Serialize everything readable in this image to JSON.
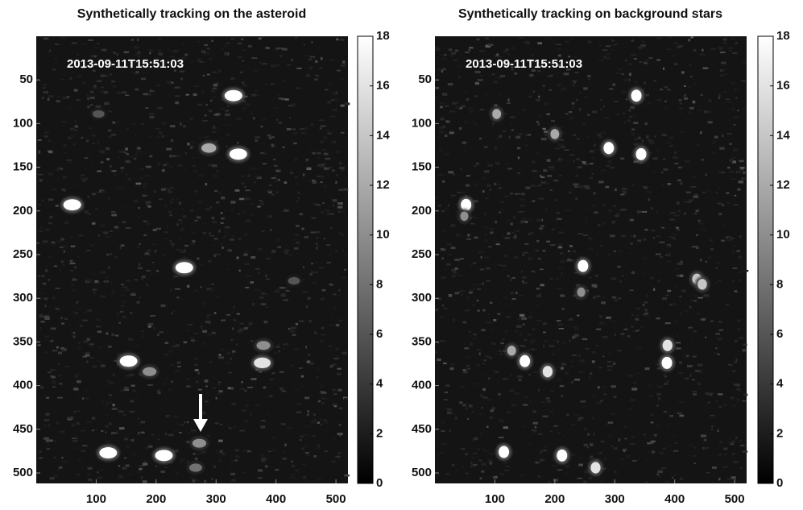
{
  "chart_data": [
    {
      "type": "image",
      "title": "Synthetically tracking on the asteroid",
      "annotation": "2013-09-11T15:51:03",
      "xlim": [
        0,
        520
      ],
      "ylim": [
        0,
        512
      ],
      "y_reversed": true,
      "xticks": [
        100,
        200,
        300,
        400,
        500
      ],
      "yticks": [
        50,
        100,
        150,
        200,
        250,
        300,
        350,
        400,
        450,
        500
      ],
      "colormap": "gray",
      "clim": [
        0,
        18
      ],
      "cticks": [
        0,
        2,
        4,
        6,
        8,
        10,
        12,
        14,
        16,
        18
      ],
      "sources": [
        {
          "x": 329,
          "y": 68,
          "peak": 18
        },
        {
          "x": 288,
          "y": 128,
          "peak": 12
        },
        {
          "x": 337,
          "y": 135,
          "peak": 18
        },
        {
          "x": 60,
          "y": 193,
          "peak": 18
        },
        {
          "x": 247,
          "y": 265,
          "peak": 18
        },
        {
          "x": 154,
          "y": 372,
          "peak": 18
        },
        {
          "x": 189,
          "y": 384,
          "peak": 10
        },
        {
          "x": 379,
          "y": 354,
          "peak": 10
        },
        {
          "x": 377,
          "y": 374,
          "peak": 16
        },
        {
          "x": 120,
          "y": 477,
          "peak": 18
        },
        {
          "x": 213,
          "y": 480,
          "peak": 18
        },
        {
          "x": 266,
          "y": 494,
          "peak": 8
        },
        {
          "x": 104,
          "y": 89,
          "peak": 6
        },
        {
          "x": 430,
          "y": 280,
          "peak": 6
        },
        {
          "x": 272,
          "y": 466,
          "peak": 10
        }
      ]
    },
    {
      "type": "image",
      "title": "Synthetically tracking on background stars",
      "annotation": "2013-09-11T15:51:03",
      "xlim": [
        0,
        520
      ],
      "ylim": [
        0,
        512
      ],
      "y_reversed": true,
      "xticks": [
        100,
        200,
        300,
        400,
        500
      ],
      "yticks": [
        50,
        100,
        150,
        200,
        250,
        300,
        350,
        400,
        450,
        500
      ],
      "colormap": "gray",
      "clim": [
        0,
        18
      ],
      "cticks": [
        0,
        2,
        4,
        6,
        8,
        10,
        12,
        14,
        16,
        18
      ],
      "sources": [
        {
          "x": 336,
          "y": 68,
          "peak": 18
        },
        {
          "x": 290,
          "y": 128,
          "peak": 18
        },
        {
          "x": 344,
          "y": 135,
          "peak": 18
        },
        {
          "x": 52,
          "y": 193,
          "peak": 18
        },
        {
          "x": 247,
          "y": 263,
          "peak": 18
        },
        {
          "x": 150,
          "y": 372,
          "peak": 18
        },
        {
          "x": 188,
          "y": 384,
          "peak": 16
        },
        {
          "x": 388,
          "y": 354,
          "peak": 16
        },
        {
          "x": 387,
          "y": 374,
          "peak": 18
        },
        {
          "x": 115,
          "y": 476,
          "peak": 18
        },
        {
          "x": 212,
          "y": 480,
          "peak": 18
        },
        {
          "x": 268,
          "y": 494,
          "peak": 16
        },
        {
          "x": 103,
          "y": 89,
          "peak": 12
        },
        {
          "x": 200,
          "y": 112,
          "peak": 12
        },
        {
          "x": 437,
          "y": 278,
          "peak": 14
        },
        {
          "x": 446,
          "y": 284,
          "peak": 14
        },
        {
          "x": 49,
          "y": 206,
          "peak": 10
        },
        {
          "x": 244,
          "y": 293,
          "peak": 10
        },
        {
          "x": 128,
          "y": 360,
          "peak": 12
        }
      ]
    }
  ]
}
